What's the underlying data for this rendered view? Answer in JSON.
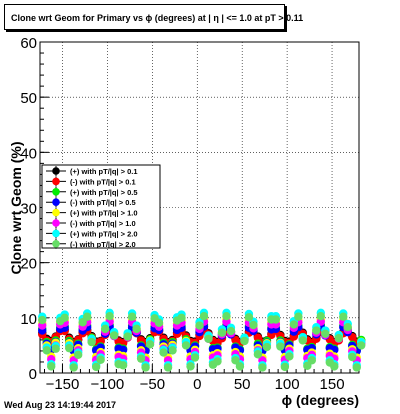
{
  "chart_data": {
    "type": "scatter",
    "title": "Clone wrt Geom for Primary vs ϕ (degrees) at | η | <= 1.0 at pT > 0.11",
    "xlabel": "ϕ (degrees)",
    "ylabel": "Clone wrt Geom (%)",
    "xlim": [
      -175,
      180
    ],
    "ylim": [
      0,
      60
    ],
    "x_ticks": [
      -150,
      -100,
      -50,
      0,
      50,
      100,
      150
    ],
    "x_tick_labels": [
      "−150",
      "−100",
      "−50",
      "0",
      "50",
      "100",
      "150"
    ],
    "y_ticks": [
      0,
      10,
      20,
      30,
      40,
      50,
      60
    ],
    "grid": true,
    "legend_position": "middle-left",
    "series": [
      {
        "name": "(+) with pT/|q| > 0.1",
        "color": "#000000",
        "values": [
          7.3,
          6.2,
          5.8,
          6.6,
          7.7,
          7.8,
          6.4,
          5.6,
          6.1,
          7.4,
          7.8,
          6.7,
          5.7,
          5.8,
          7.0,
          7.9,
          7.1,
          5.9,
          5.6,
          6.6,
          7.8,
          7.4,
          6.1,
          5.6,
          6.3,
          7.6,
          7.7,
          6.4,
          5.6,
          6.0,
          7.3,
          7.9,
          6.8,
          5.8,
          5.7,
          6.9,
          7.9,
          7.2,
          6.0,
          5.6,
          6.5,
          7.7,
          7.5,
          6.2,
          5.6,
          6.2,
          7.5,
          7.8,
          6.6,
          5.7,
          5.9,
          7.1,
          7.9,
          6.9,
          5.8,
          5.7,
          6.8,
          7.8,
          7.3,
          6.1,
          5.6,
          6.4,
          7.6,
          7.6,
          6.3,
          5.6,
          6.1,
          7.4,
          7.8,
          6.7,
          5.7,
          5.8
        ]
      },
      {
        "name": "(-) with pT/|q| > 0.1",
        "color": "#ff0000",
        "values": [
          7.0,
          5.9,
          5.6,
          6.5,
          7.6,
          7.6,
          6.2,
          5.4,
          6.0,
          7.2,
          7.6,
          6.5,
          5.5,
          5.7,
          6.9,
          7.7,
          6.9,
          5.7,
          5.4,
          6.4,
          7.6,
          7.2,
          5.9,
          5.4,
          6.1,
          7.4,
          7.5,
          6.2,
          5.4,
          5.8,
          7.1,
          7.7,
          6.6,
          5.6,
          5.5,
          6.7,
          7.7,
          7.0,
          5.8,
          5.4,
          6.3,
          7.5,
          7.3,
          6.0,
          5.4,
          6.0,
          7.3,
          7.6,
          6.4,
          5.5,
          5.7,
          6.9,
          7.7,
          6.7,
          5.6,
          5.5,
          6.6,
          7.6,
          7.1,
          5.9,
          5.4,
          6.2,
          7.4,
          7.4,
          6.1,
          5.4,
          5.9,
          7.2,
          7.6,
          6.5,
          5.5,
          5.6
        ]
      },
      {
        "name": "(+) with pT/|q| > 0.5",
        "color": "#00ee00",
        "values": [
          8.1,
          5.6,
          4.4,
          5.9,
          8.3,
          8.5,
          5.8,
          4.2,
          5.3,
          8.0,
          8.6,
          6.4,
          4.3,
          4.8,
          7.4,
          8.7,
          7.0,
          4.6,
          4.4,
          6.8,
          8.6,
          7.6,
          5.0,
          4.2,
          6.1,
          8.4,
          8.1,
          5.5,
          4.2,
          5.6,
          8.1,
          8.5,
          6.1,
          4.3,
          5.0,
          7.7,
          8.7,
          6.7,
          4.5,
          4.6,
          7.1,
          8.7,
          7.3,
          4.8,
          4.3,
          6.4,
          8.5,
          7.9,
          5.3,
          4.2,
          5.8,
          8.2,
          8.3,
          5.9,
          4.3,
          5.2,
          7.8,
          8.6,
          6.5,
          4.4,
          4.7,
          7.3,
          8.7,
          7.1,
          4.7,
          4.4,
          6.6,
          8.6,
          7.7,
          5.1,
          4.2,
          6.0
        ]
      },
      {
        "name": "(-) with pT/|q| > 0.5",
        "color": "#0000ff",
        "values": [
          7.7,
          5.3,
          4.2,
          5.6,
          8.0,
          8.2,
          5.5,
          4.0,
          5.1,
          7.7,
          8.3,
          6.1,
          4.1,
          4.6,
          7.1,
          8.4,
          6.7,
          4.4,
          4.2,
          6.5,
          8.3,
          7.3,
          4.8,
          4.0,
          5.8,
          8.1,
          7.8,
          5.2,
          4.0,
          5.3,
          7.8,
          8.2,
          5.8,
          4.1,
          4.8,
          7.4,
          8.4,
          6.4,
          4.3,
          4.4,
          6.8,
          8.4,
          7.0,
          4.6,
          4.1,
          6.1,
          8.2,
          7.6,
          5.0,
          4.0,
          5.5,
          7.9,
          8.0,
          5.6,
          4.1,
          5.0,
          7.5,
          8.3,
          6.2,
          4.2,
          4.5,
          7.0,
          8.4,
          6.8,
          4.5,
          4.2,
          6.3,
          8.3,
          7.4,
          4.9,
          4.0,
          5.7
        ]
      },
      {
        "name": "(+) with pT/|q| > 1.0",
        "color": "#ffff00",
        "values": [
          9.0,
          5.0,
          3.0,
          5.5,
          9.2,
          9.5,
          5.4,
          2.8,
          4.5,
          8.8,
          9.6,
          6.2,
          2.9,
          3.8,
          7.9,
          9.7,
          7.1,
          3.3,
          3.1,
          6.9,
          9.6,
          8.0,
          4.1,
          2.8,
          5.9,
          9.4,
          8.8,
          4.8,
          2.8,
          5.1,
          9.0,
          9.5,
          5.8,
          3.0,
          4.2,
          8.4,
          9.7,
          6.6,
          3.2,
          3.6,
          7.4,
          9.7,
          7.6,
          3.8,
          3.0,
          6.3,
          9.5,
          8.5,
          4.5,
          2.8,
          5.4,
          9.2,
          9.2,
          5.5,
          2.9,
          4.4,
          8.6,
          9.6,
          6.4,
          3.1,
          3.7,
          7.7,
          9.7,
          7.3,
          3.5,
          3.0,
          6.6,
          9.6,
          8.2,
          4.3,
          2.8,
          5.7
        ]
      },
      {
        "name": "(-) with pT/|q| > 1.0",
        "color": "#ff00ff",
        "values": [
          8.6,
          4.6,
          2.5,
          5.0,
          8.8,
          9.1,
          5.0,
          2.3,
          4.1,
          8.4,
          9.2,
          5.8,
          2.4,
          3.4,
          7.5,
          9.3,
          6.7,
          2.9,
          2.6,
          6.5,
          9.2,
          7.6,
          3.7,
          2.3,
          5.5,
          9.0,
          8.4,
          4.4,
          2.3,
          4.7,
          8.6,
          9.1,
          5.4,
          2.5,
          3.8,
          8.0,
          9.3,
          6.2,
          2.8,
          3.2,
          7.0,
          9.3,
          7.2,
          3.4,
          2.5,
          5.9,
          9.1,
          8.1,
          4.1,
          2.3,
          5.0,
          8.8,
          8.8,
          5.1,
          2.4,
          4.0,
          8.2,
          9.2,
          6.0,
          2.7,
          3.3,
          7.3,
          9.3,
          6.9,
          3.1,
          2.6,
          6.2,
          9.2,
          7.8,
          3.9,
          2.3,
          5.3
        ]
      },
      {
        "name": "(+) with pT/|q| > 2.0",
        "color": "#00ffff",
        "values": [
          10.2,
          4.6,
          1.6,
          4.9,
          10.0,
          10.6,
          5.0,
          1.4,
          3.7,
          9.8,
          10.8,
          6.2,
          1.5,
          2.8,
          8.6,
          10.9,
          7.4,
          2.0,
          1.8,
          7.2,
          10.8,
          8.6,
          3.0,
          1.4,
          5.8,
          10.5,
          9.7,
          4.2,
          1.4,
          4.6,
          10.1,
          10.6,
          5.6,
          1.6,
          3.2,
          9.2,
          10.9,
          6.8,
          1.9,
          2.5,
          7.9,
          10.9,
          8.2,
          2.7,
          1.6,
          6.4,
          10.7,
          9.3,
          3.9,
          1.4,
          5.2,
          10.3,
          10.3,
          5.3,
          1.5,
          3.4,
          9.4,
          10.8,
          6.5,
          1.7,
          2.7,
          8.3,
          10.9,
          7.7,
          2.3,
          1.6,
          6.9,
          10.8,
          8.9,
          3.3,
          1.4,
          5.6
        ]
      },
      {
        "name": "(-) with pT/|q| > 2.0",
        "color": "#66dd66",
        "values": [
          9.6,
          4.1,
          1.2,
          4.4,
          9.4,
          10.0,
          4.5,
          1.0,
          3.3,
          9.2,
          10.2,
          5.6,
          1.1,
          2.4,
          8.0,
          10.3,
          6.8,
          1.6,
          1.4,
          6.6,
          10.2,
          8.0,
          2.6,
          1.0,
          5.2,
          9.9,
          9.1,
          3.7,
          1.0,
          4.1,
          9.5,
          10.0,
          5.0,
          1.2,
          2.8,
          8.6,
          10.3,
          6.2,
          1.5,
          2.1,
          7.3,
          10.3,
          7.6,
          2.3,
          1.2,
          5.8,
          10.1,
          8.7,
          3.4,
          1.0,
          4.7,
          9.7,
          9.7,
          4.8,
          1.1,
          3.0,
          8.8,
          10.2,
          5.9,
          1.3,
          2.3,
          7.7,
          10.3,
          7.1,
          1.9,
          1.2,
          6.3,
          10.2,
          8.3,
          2.9,
          1.0,
          5.0
        ]
      }
    ]
  },
  "footer_timestamp": "Wed Aug 23 14:19:44 2017"
}
